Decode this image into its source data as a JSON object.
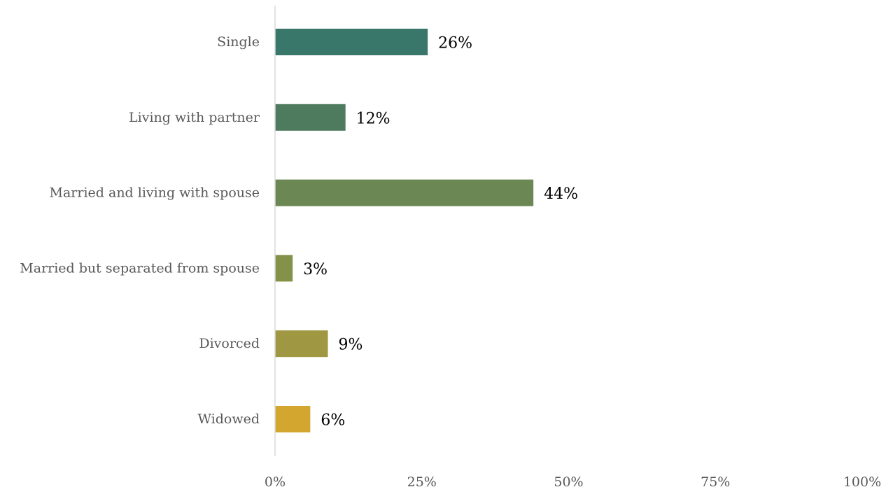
{
  "chart_data": {
    "type": "bar",
    "orientation": "horizontal",
    "categories": [
      "Single",
      "Living with partner",
      "Married and living with spouse",
      "Married but separated from spouse",
      "Divorced",
      "Widowed"
    ],
    "values": [
      26,
      12,
      44,
      3,
      9,
      6
    ],
    "value_labels": [
      "26%",
      "12%",
      "44%",
      "3%",
      "9%",
      "6%"
    ],
    "bar_colors": [
      "#38776A",
      "#4E7A5E",
      "#6B8753",
      "#849249",
      "#A09742",
      "#D3A72F"
    ],
    "xlim": [
      0,
      100
    ],
    "x_ticks": [
      0,
      25,
      50,
      75,
      100
    ],
    "x_tick_labels": [
      "0%",
      "25%",
      "50%",
      "75%",
      "100%"
    ],
    "title": "",
    "xlabel": "",
    "ylabel": "",
    "grid": false,
    "legend": "none",
    "axis_color": "#D9D9D9"
  }
}
